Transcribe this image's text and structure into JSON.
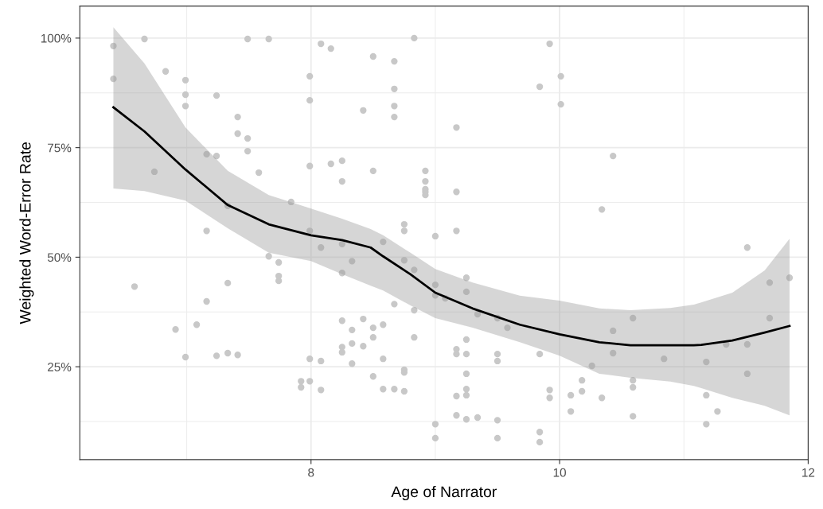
{
  "chart_data": {
    "type": "scatter",
    "xlabel": "Age of Narrator",
    "ylabel": "Weighted Word-Error Rate",
    "xlim": [
      6.14,
      12.0
    ],
    "xticks": [
      8,
      10,
      12
    ],
    "ylim": [
      3.8,
      107.3
    ],
    "yticks": [
      {
        "value": 25,
        "label": "25%"
      },
      {
        "value": 50,
        "label": "50%"
      },
      {
        "value": 75,
        "label": "75%"
      },
      {
        "value": 100,
        "label": "100%"
      }
    ],
    "grid": true,
    "marker": "circle",
    "series": [
      {
        "color": "#c8c8c8",
        "x": [
          6.41,
          6.41,
          6.58,
          6.66,
          6.74,
          6.83,
          6.91,
          6.99,
          6.99,
          6.99,
          6.99,
          7.08,
          7.16,
          7.16,
          7.16,
          7.24,
          7.24,
          7.24,
          7.33,
          7.33,
          7.33,
          7.41,
          7.41,
          7.41,
          7.49,
          7.49,
          7.49,
          7.58,
          7.66,
          7.66,
          7.74,
          7.74,
          7.74,
          7.84,
          7.92,
          7.92,
          7.99,
          7.99,
          7.99,
          7.99,
          7.99,
          7.99,
          8.08,
          8.08,
          8.08,
          8.08,
          8.16,
          8.16,
          8.25,
          8.25,
          8.25,
          8.25,
          8.25,
          8.25,
          8.25,
          8.33,
          8.33,
          8.33,
          8.33,
          8.42,
          8.42,
          8.42,
          8.5,
          8.5,
          8.5,
          8.5,
          8.5,
          8.58,
          8.58,
          8.58,
          8.58,
          8.67,
          8.67,
          8.67,
          8.67,
          8.67,
          8.67,
          8.75,
          8.75,
          8.75,
          8.75,
          8.75,
          8.75,
          8.83,
          8.83,
          8.83,
          8.83,
          8.92,
          8.92,
          8.92,
          8.92,
          8.92,
          9.0,
          9.0,
          9.0,
          9.0,
          9.0,
          9.08,
          9.17,
          9.17,
          9.17,
          9.17,
          9.17,
          9.17,
          9.17,
          9.25,
          9.25,
          9.25,
          9.25,
          9.25,
          9.25,
          9.25,
          9.25,
          9.34,
          9.34,
          9.5,
          9.5,
          9.5,
          9.5,
          9.5,
          9.58,
          9.92,
          9.84,
          9.84,
          9.84,
          9.84,
          9.92,
          9.92,
          10.01,
          10.01,
          10.09,
          10.09,
          10.18,
          10.18,
          10.26,
          10.34,
          10.34,
          10.43,
          10.43,
          10.43,
          10.59,
          10.59,
          10.59,
          10.59,
          10.84,
          11.18,
          11.18,
          11.18,
          11.27,
          11.34,
          11.51,
          11.51,
          11.51,
          11.69,
          11.69,
          11.85
        ],
        "values": [
          98.2,
          90.7,
          43.3,
          99.8,
          69.5,
          92.4,
          33.5,
          90.4,
          87.1,
          84.5,
          27.2,
          34.6,
          73.5,
          56.0,
          39.9,
          86.9,
          73.1,
          27.5,
          61.7,
          44.1,
          28.1,
          82.0,
          78.2,
          27.7,
          99.8,
          77.1,
          74.2,
          69.3,
          99.8,
          50.2,
          48.8,
          45.7,
          44.6,
          62.6,
          21.7,
          20.3,
          91.3,
          85.8,
          70.8,
          56.0,
          26.8,
          21.7,
          98.7,
          52.2,
          26.3,
          19.7,
          97.6,
          71.3,
          72.0,
          67.3,
          53.0,
          46.4,
          35.5,
          29.5,
          28.3,
          49.1,
          33.4,
          30.3,
          25.7,
          83.5,
          35.9,
          29.7,
          95.8,
          69.7,
          33.9,
          31.7,
          22.8,
          53.5,
          34.6,
          26.8,
          19.9,
          94.7,
          88.4,
          84.5,
          82.0,
          39.3,
          19.9,
          57.5,
          56.0,
          49.3,
          24.3,
          23.7,
          19.4,
          100.0,
          47.1,
          37.9,
          31.7,
          69.7,
          67.3,
          65.5,
          64.9,
          64.2,
          54.8,
          43.7,
          41.3,
          11.9,
          8.7,
          40.6,
          79.6,
          64.9,
          56.0,
          29.0,
          27.9,
          18.3,
          13.9,
          45.3,
          42.1,
          31.2,
          27.9,
          23.4,
          19.9,
          18.5,
          13.0,
          37.0,
          13.4,
          36.1,
          27.9,
          26.3,
          12.8,
          8.7,
          33.9,
          98.7,
          88.9,
          27.9,
          10.1,
          7.8,
          19.7,
          17.9,
          91.3,
          84.9,
          18.5,
          14.8,
          21.9,
          19.4,
          25.2,
          60.9,
          17.9,
          73.1,
          33.2,
          28.1,
          36.1,
          21.9,
          20.3,
          13.7,
          26.8,
          26.1,
          18.5,
          11.9,
          14.8,
          30.1,
          52.2,
          30.1,
          23.4,
          44.2,
          36.1,
          45.3
        ]
      },
      {
        "type": "line",
        "color": "#000000",
        "marker": "none",
        "x": [
          6.41,
          6.66,
          6.99,
          7.33,
          7.66,
          8.0,
          8.25,
          8.48,
          8.58,
          8.8,
          9.0,
          9.3,
          9.68,
          10.0,
          10.32,
          10.57,
          10.89,
          11.08,
          11.14,
          11.39,
          11.65,
          11.85
        ],
        "values": [
          84.2,
          78.7,
          70.0,
          61.9,
          57.5,
          55.0,
          53.9,
          52.2,
          50.2,
          46.1,
          41.9,
          38.3,
          34.6,
          32.4,
          30.6,
          29.9,
          29.9,
          29.9,
          30.0,
          31.0,
          32.8,
          34.3
        ],
        "upper": [
          102.5,
          94.2,
          79.6,
          69.7,
          64.2,
          61.1,
          58.8,
          56.4,
          55.0,
          51.0,
          47.3,
          44.2,
          41.2,
          40.1,
          38.3,
          37.9,
          38.4,
          39.2,
          39.7,
          41.9,
          47.0,
          54.2
        ],
        "lower": [
          65.7,
          65.1,
          62.9,
          56.6,
          51.0,
          49.1,
          46.1,
          43.5,
          42.4,
          39.0,
          36.1,
          33.9,
          30.6,
          27.5,
          23.4,
          22.5,
          21.6,
          20.6,
          20.1,
          17.9,
          16.1,
          13.9
        ]
      }
    ]
  }
}
